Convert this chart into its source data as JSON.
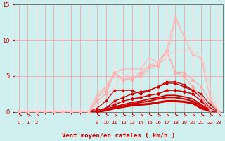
{
  "xlabel": "Vent moyen/en rafales ( km/h )",
  "bg_color": "#cff0ee",
  "grid_color": "#ff9999",
  "text_color": "#cc0000",
  "axis_color": "#777777",
  "ylim": [
    0,
    15
  ],
  "yticks": [
    0,
    5,
    10,
    15
  ],
  "xtick_labels": [
    "0",
    "1",
    "2",
    "",
    "",
    "",
    "",
    "",
    "",
    "9",
    "10",
    "11",
    "12",
    "13",
    "14",
    "15",
    "16",
    "17",
    "18",
    "19",
    "20",
    "21",
    "22",
    "23"
  ],
  "curves": [
    {
      "y": [
        0,
        0,
        0,
        0,
        0,
        0,
        0,
        0,
        0,
        0.0,
        0.2,
        0.5,
        0.7,
        0.9,
        1.0,
        1.1,
        1.3,
        1.5,
        1.5,
        1.4,
        1.2,
        0.5,
        0.1,
        0.0
      ],
      "color": "#cc0000",
      "lw": 2.2,
      "marker": null,
      "ms": 0
    },
    {
      "y": [
        0,
        0,
        0,
        0,
        0,
        0,
        0,
        0,
        0,
        0.0,
        0.3,
        0.6,
        0.8,
        1.1,
        1.3,
        1.5,
        1.8,
        2.0,
        2.0,
        1.8,
        1.5,
        0.8,
        0.1,
        0.0
      ],
      "color": "#cc0000",
      "lw": 1.5,
      "marker": null,
      "ms": 0
    },
    {
      "y": [
        0,
        0,
        0,
        0,
        0,
        0,
        0,
        0,
        0,
        0.0,
        0.3,
        0.7,
        1.0,
        1.3,
        1.5,
        1.8,
        2.0,
        2.3,
        2.3,
        2.1,
        1.8,
        1.0,
        0.2,
        0.0
      ],
      "color": "#cc0000",
      "lw": 1.3,
      "marker": null,
      "ms": 0
    },
    {
      "y": [
        0,
        0,
        0,
        0,
        0,
        0,
        0,
        0,
        0,
        0.0,
        0.5,
        1.0,
        1.5,
        1.8,
        2.0,
        2.3,
        2.5,
        3.0,
        3.0,
        2.8,
        2.5,
        1.5,
        0.3,
        0.0
      ],
      "color": "#cc0000",
      "lw": 1.1,
      "marker": "D",
      "ms": 2.0
    },
    {
      "y": [
        0,
        0,
        0,
        0,
        0,
        0,
        0,
        0,
        0,
        0.2,
        0.5,
        1.5,
        2.0,
        2.5,
        2.8,
        3.0,
        3.5,
        4.0,
        4.0,
        3.5,
        3.0,
        2.0,
        0.5,
        0.0
      ],
      "color": "#cc0000",
      "lw": 1.0,
      "marker": "o",
      "ms": 2.0
    },
    {
      "y": [
        0,
        0,
        0,
        0,
        0,
        0,
        0,
        0,
        0,
        0.5,
        1.5,
        3.0,
        3.0,
        3.0,
        2.5,
        3.0,
        3.5,
        4.2,
        4.2,
        3.8,
        3.0,
        2.5,
        1.0,
        0.0
      ],
      "color": "#cc0000",
      "lw": 0.9,
      "marker": "s",
      "ms": 2.0
    },
    {
      "y": [
        0,
        0,
        0,
        0,
        0,
        0,
        0,
        0,
        0,
        1.5,
        2.5,
        5.5,
        4.5,
        4.5,
        5.5,
        6.5,
        6.5,
        8.5,
        5.5,
        5.0,
        3.5,
        2.0,
        0.3,
        0.0
      ],
      "color": "#ffaaaa",
      "lw": 1.0,
      "marker": "o",
      "ms": 2.5
    },
    {
      "y": [
        0,
        0,
        0,
        0,
        0,
        0,
        0,
        0,
        0,
        2.0,
        3.0,
        5.5,
        4.5,
        4.8,
        5.0,
        6.5,
        7.0,
        8.5,
        5.5,
        5.5,
        4.5,
        3.5,
        1.5,
        0.0
      ],
      "color": "#ffaaaa",
      "lw": 0.9,
      "marker": "^",
      "ms": 2.5
    },
    {
      "y": [
        0,
        0,
        0,
        0,
        0,
        0,
        0,
        0,
        0,
        2.5,
        3.5,
        5.0,
        4.5,
        5.0,
        4.8,
        6.0,
        6.5,
        7.5,
        13.0,
        10.5,
        8.0,
        7.5,
        2.0,
        0.0
      ],
      "color": "#ffbbbb",
      "lw": 0.9,
      "marker": null,
      "ms": 0
    },
    {
      "y": [
        0,
        0,
        0,
        0,
        0,
        0,
        0,
        0,
        0,
        2.0,
        3.5,
        5.5,
        6.0,
        6.0,
        6.0,
        7.5,
        7.0,
        8.5,
        13.5,
        10.5,
        8.0,
        7.5,
        2.0,
        0.0
      ],
      "color": "#ffbbbb",
      "lw": 0.9,
      "marker": "^",
      "ms": 2.0
    },
    {
      "y": [
        0,
        0,
        0,
        0,
        0,
        0,
        0,
        0,
        0,
        1.0,
        2.0,
        3.5,
        5.0,
        5.5,
        5.5,
        6.5,
        7.0,
        8.0,
        8.5,
        8.5,
        8.5,
        8.0,
        3.5,
        0.0
      ],
      "color": "#ffcccc",
      "lw": 0.8,
      "marker": null,
      "ms": 0
    }
  ]
}
